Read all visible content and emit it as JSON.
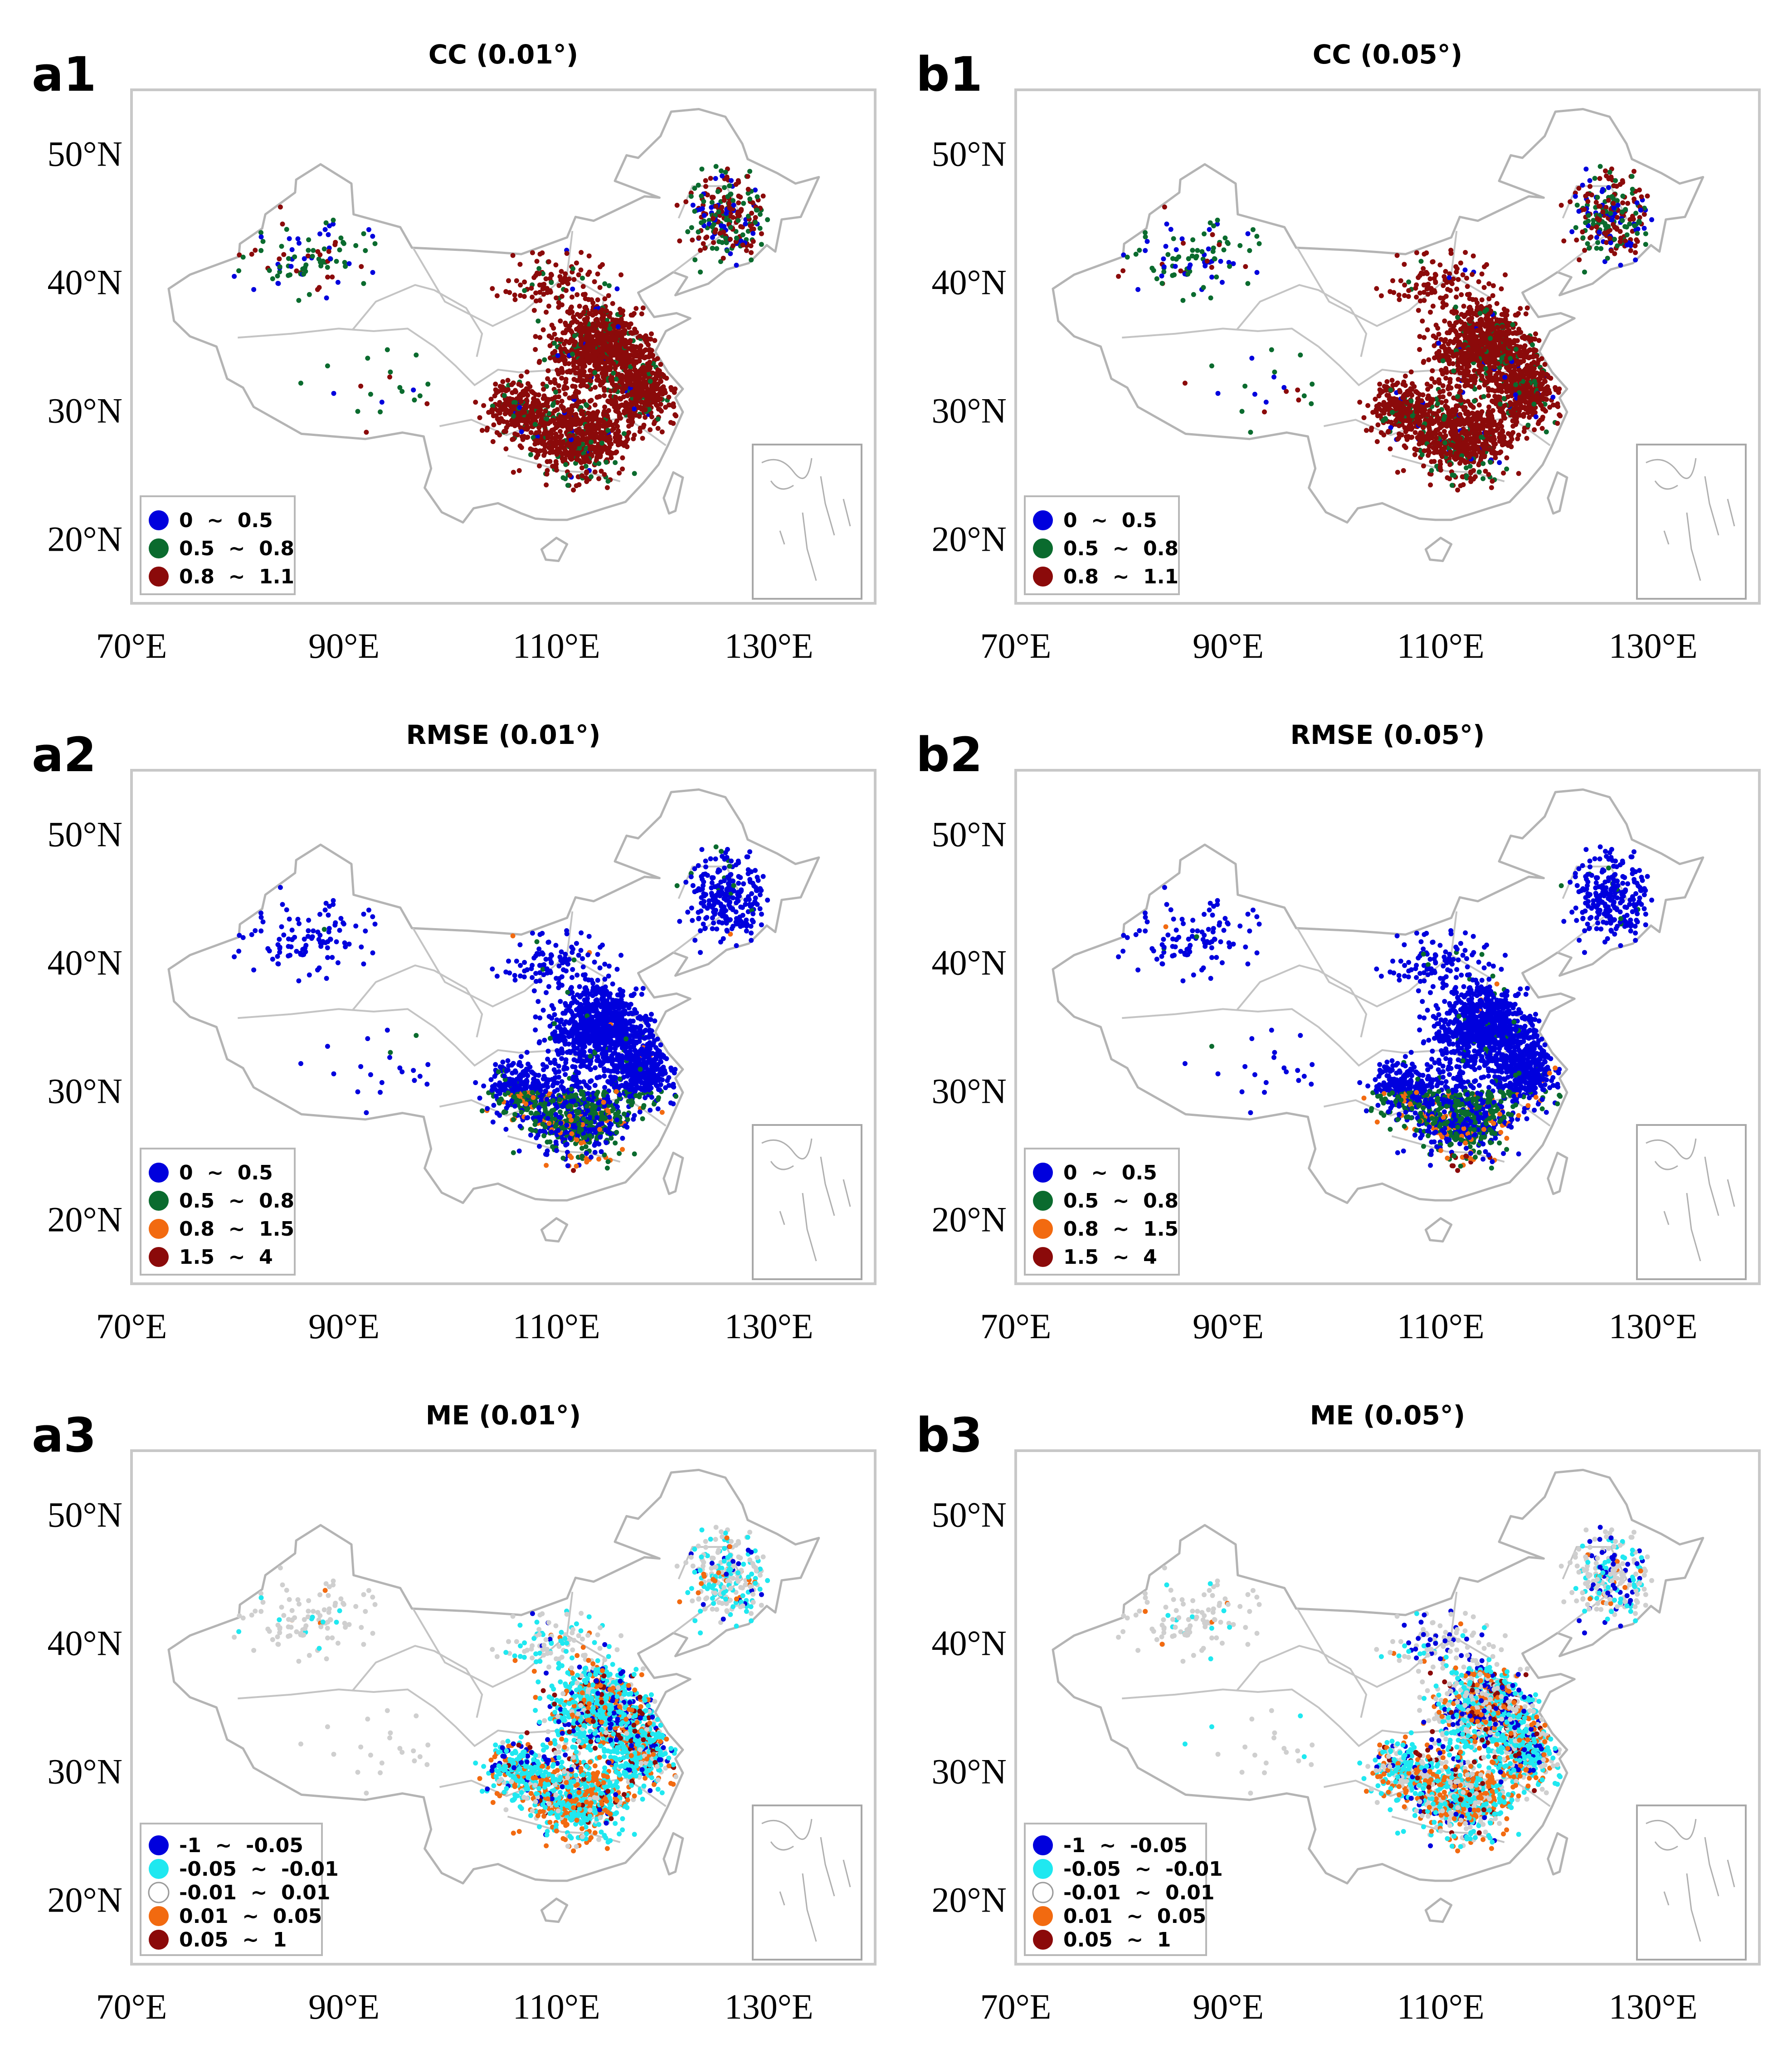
{
  "figure": {
    "panels": [
      {
        "id": "a1",
        "label": "a1",
        "title": "CC (0.01°)",
        "metric": "CC",
        "legend": [
          {
            "range": "0  ~  0.5",
            "color": "#0000dd"
          },
          {
            "range": "0.5  ~  0.8",
            "color": "#0a6b2e"
          },
          {
            "range": "0.8  ~  1.1",
            "color": "#8b0a0a"
          }
        ]
      },
      {
        "id": "b1",
        "label": "b1",
        "title": "CC (0.05°)",
        "metric": "CC",
        "legend": [
          {
            "range": "0  ~  0.5",
            "color": "#0000dd"
          },
          {
            "range": "0.5  ~  0.8",
            "color": "#0a6b2e"
          },
          {
            "range": "0.8  ~  1.1",
            "color": "#8b0a0a"
          }
        ]
      },
      {
        "id": "a2",
        "label": "a2",
        "title": "RMSE (0.01°)",
        "metric": "RMSE",
        "legend": [
          {
            "range": "0  ~  0.5",
            "color": "#0000dd"
          },
          {
            "range": "0.5  ~  0.8",
            "color": "#0a6b2e"
          },
          {
            "range": "0.8  ~  1.5",
            "color": "#f26a10"
          },
          {
            "range": "1.5  ~  4",
            "color": "#8b0a0a"
          }
        ]
      },
      {
        "id": "b2",
        "label": "b2",
        "title": "RMSE (0.05°)",
        "metric": "RMSE",
        "legend": [
          {
            "range": "0  ~  0.5",
            "color": "#0000dd"
          },
          {
            "range": "0.5  ~  0.8",
            "color": "#0a6b2e"
          },
          {
            "range": "0.8  ~  1.5",
            "color": "#f26a10"
          },
          {
            "range": "1.5  ~  4",
            "color": "#8b0a0a"
          }
        ]
      },
      {
        "id": "a3",
        "label": "a3",
        "title": "ME (0.01°)",
        "metric": "ME",
        "legend": [
          {
            "range": "-1  ~  -0.05",
            "color": "#0000dd"
          },
          {
            "range": "-0.05  ~  -0.01",
            "color": "#1fe8f0"
          },
          {
            "range": "-0.01  ~  0.01",
            "color": "#ffffff"
          },
          {
            "range": "0.01  ~  0.05",
            "color": "#f26a10"
          },
          {
            "range": "0.05  ~  1",
            "color": "#8b0a0a"
          }
        ]
      },
      {
        "id": "b3",
        "label": "b3",
        "title": "ME (0.05°)",
        "metric": "ME",
        "legend": [
          {
            "range": "-1  ~  -0.05",
            "color": "#0000dd"
          },
          {
            "range": "-0.05  ~  -0.01",
            "color": "#1fe8f0"
          },
          {
            "range": "-0.01  ~  0.01",
            "color": "#ffffff"
          },
          {
            "range": "0.01  ~  0.05",
            "color": "#f26a10"
          },
          {
            "range": "0.05  ~  1",
            "color": "#8b0a0a"
          }
        ]
      }
    ],
    "axes": {
      "x_ticks": [
        "70°E",
        "90°E",
        "110°E",
        "130°E"
      ],
      "y_ticks": [
        "20°N",
        "30°N",
        "40°N",
        "50°N"
      ],
      "lon_range": [
        70,
        140
      ],
      "lat_range": [
        15,
        55
      ]
    }
  }
}
